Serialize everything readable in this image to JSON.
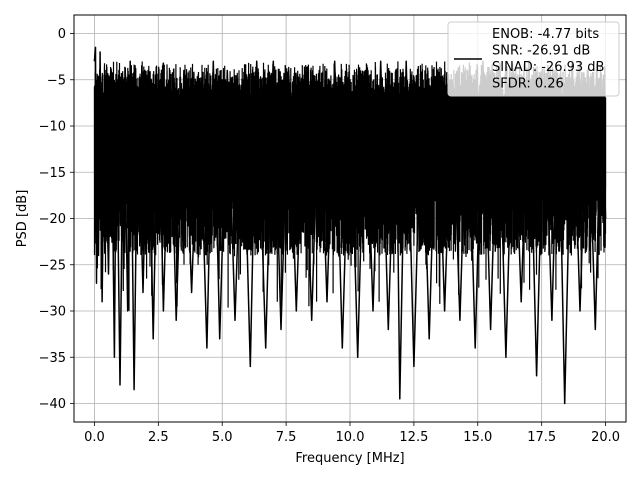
{
  "chart_data": {
    "type": "line",
    "title": "",
    "xlabel": "Frequency [MHz]",
    "ylabel": "PSD [dB]",
    "xlim": [
      -0.8,
      20.8
    ],
    "ylim": [
      -42,
      2
    ],
    "xticks": [
      0.0,
      2.5,
      5.0,
      7.5,
      10.0,
      12.5,
      15.0,
      17.5,
      20.0
    ],
    "xtick_labels": [
      "0.0",
      "2.5",
      "5.0",
      "7.5",
      "10.0",
      "12.5",
      "15.0",
      "17.5",
      "20.0"
    ],
    "yticks": [
      0,
      -5,
      -10,
      -15,
      -20,
      -25,
      -30,
      -35,
      -40
    ],
    "ytick_labels": [
      "0",
      "−5",
      "−10",
      "−15",
      "−20",
      "−25",
      "−30",
      "−35",
      "−40"
    ],
    "grid": true,
    "legend_position": "top-right",
    "line_color": "#000000",
    "series": [
      {
        "name": "ENOB: -4.77 bits\nSNR: -26.91 dB\nSINAD: -26.93 dB\nSFDR: 0.26",
        "x": [
          0.0,
          0.04,
          0.08,
          0.12,
          0.16,
          0.22,
          0.3,
          0.4,
          0.55,
          0.65,
          0.78,
          0.86,
          1.0,
          1.15,
          1.3,
          1.4,
          1.55,
          1.7,
          1.9,
          2.1,
          2.3,
          2.5,
          2.7,
          2.95,
          3.2,
          3.5,
          3.8,
          4.1,
          4.4,
          4.65,
          4.9,
          5.2,
          5.5,
          5.8,
          6.1,
          6.35,
          6.7,
          7.0,
          7.3,
          7.6,
          7.9,
          8.2,
          8.5,
          8.8,
          9.1,
          9.4,
          9.7,
          10.0,
          10.3,
          10.6,
          10.9,
          11.2,
          11.5,
          11.8,
          11.95,
          12.2,
          12.5,
          12.8,
          13.1,
          13.4,
          13.7,
          14.0,
          14.3,
          14.6,
          14.9,
          15.2,
          15.5,
          15.8,
          16.1,
          16.4,
          16.7,
          17.0,
          17.3,
          17.6,
          17.9,
          18.15,
          18.4,
          18.7,
          19.0,
          19.3,
          19.6,
          19.85,
          20.0
        ],
        "y": [
          -3,
          -1.5,
          -27,
          -8,
          -24,
          -2,
          -29,
          -6,
          -26,
          -4,
          -35,
          -7,
          -38,
          -5,
          -30,
          -3,
          -38.5,
          -6,
          -28,
          -4,
          -33,
          -5,
          -30,
          -4,
          -31,
          -4,
          -28,
          -5,
          -34,
          -3,
          -33,
          -4,
          -31,
          -5,
          -36,
          -3,
          -34,
          -3,
          -32,
          -4,
          -30,
          -5,
          -31,
          -4,
          -29,
          -3,
          -34,
          -5,
          -35,
          -4,
          -30,
          -3,
          -32,
          -4,
          -39.5,
          -3,
          -36,
          -5,
          -33,
          -4,
          -30,
          -5,
          -31,
          -4,
          -34,
          -3,
          -32,
          -4,
          -35,
          -5,
          -29,
          -3,
          -37,
          -4,
          -31,
          -5,
          -40,
          -3,
          -30,
          -4,
          -32,
          -5,
          -20
        ]
      }
    ]
  }
}
